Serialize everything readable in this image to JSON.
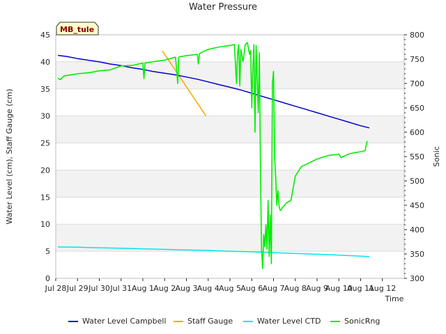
{
  "chart_data": {
    "type": "line",
    "title": "Water Pressure",
    "site_label": "MB_tule",
    "xlabel": "Time",
    "ylabel_left": "Water Level (cm), Staff Gauge (cm)",
    "ylabel_right": "Sonic",
    "xlim": [
      0,
      16
    ],
    "ylim_left": [
      0,
      45
    ],
    "ylim_right": [
      300,
      800
    ],
    "x_ticks": [
      {
        "pos": 0,
        "label": "Jul 28"
      },
      {
        "pos": 1,
        "label": "Jul 29"
      },
      {
        "pos": 2,
        "label": "Jul 30"
      },
      {
        "pos": 3,
        "label": "Jul 31"
      },
      {
        "pos": 4,
        "label": "Aug 1"
      },
      {
        "pos": 5,
        "label": "Aug 2"
      },
      {
        "pos": 6,
        "label": "Aug 3"
      },
      {
        "pos": 7,
        "label": "Aug 4"
      },
      {
        "pos": 8,
        "label": "Aug 5"
      },
      {
        "pos": 9,
        "label": "Aug 6"
      },
      {
        "pos": 10,
        "label": "Aug 7"
      },
      {
        "pos": 11,
        "label": "Aug 8"
      },
      {
        "pos": 12,
        "label": "Aug 9"
      },
      {
        "pos": 13,
        "label": "Aug 10"
      },
      {
        "pos": 14,
        "label": "Aug 11"
      },
      {
        "pos": 15,
        "label": "Aug 12"
      }
    ],
    "y_ticks_left": [
      0,
      5,
      10,
      15,
      20,
      25,
      30,
      35,
      40,
      45
    ],
    "y_ticks_right": [
      300,
      350,
      400,
      450,
      500,
      550,
      600,
      650,
      700,
      750,
      800
    ],
    "colors": {
      "campbell": "#0000cc",
      "staff": "#ffa500",
      "ctd": "#00e5ee",
      "sonic": "#00ee00",
      "band": "#f2f2f2",
      "grid": "#dcdcdc"
    },
    "series": [
      {
        "name": "Water Level Campbell",
        "key": "campbell",
        "axis": "left",
        "x": [
          0.1,
          0.5,
          1.0,
          1.5,
          2.0,
          2.5,
          3.0,
          3.5,
          4.0,
          4.5,
          5.0,
          5.5,
          6.0,
          6.5,
          7.0,
          7.5,
          8.0,
          8.5,
          9.0,
          9.5,
          10.0,
          10.5,
          11.0,
          11.5,
          12.0,
          12.5,
          13.0,
          13.5,
          14.0,
          14.4
        ],
        "y": [
          41.2,
          41.0,
          40.6,
          40.3,
          40.0,
          39.6,
          39.3,
          38.9,
          38.6,
          38.2,
          37.9,
          37.6,
          37.2,
          36.8,
          36.3,
          35.8,
          35.3,
          34.8,
          34.2,
          33.6,
          33.0,
          32.4,
          31.8,
          31.2,
          30.6,
          30.0,
          29.4,
          28.8,
          28.2,
          27.8
        ]
      },
      {
        "name": "Staff Gauge",
        "key": "staff",
        "axis": "left",
        "x": [
          4.9,
          6.9
        ],
        "y": [
          42.0,
          30.0
        ]
      },
      {
        "name": "Water Level CTD",
        "key": "ctd",
        "axis": "left",
        "x": [
          0.1,
          1.0,
          2.0,
          3.0,
          4.0,
          5.0,
          6.0,
          7.0,
          8.0,
          9.0,
          10.0,
          11.0,
          12.0,
          13.0,
          14.0,
          14.4
        ],
        "y": [
          5.8,
          5.75,
          5.65,
          5.55,
          5.45,
          5.35,
          5.25,
          5.15,
          5.0,
          4.9,
          4.75,
          4.6,
          4.45,
          4.3,
          4.1,
          4.0
        ]
      },
      {
        "name": "SonicRng",
        "key": "sonic",
        "axis": "right",
        "x": [
          0.1,
          0.2,
          0.4,
          0.6,
          1.0,
          1.5,
          2.0,
          2.5,
          3.0,
          3.5,
          4.0,
          4.05,
          4.1,
          4.5,
          5.0,
          5.5,
          5.6,
          5.65,
          5.7,
          6.0,
          6.5,
          6.55,
          6.6,
          6.7,
          7.0,
          7.5,
          8.0,
          8.2,
          8.3,
          8.35,
          8.4,
          8.45,
          8.5,
          8.6,
          8.7,
          8.8,
          8.9,
          8.95,
          9.0,
          9.05,
          9.1,
          9.15,
          9.2,
          9.3,
          9.35,
          9.4,
          9.45,
          9.5,
          9.55,
          9.6,
          9.65,
          9.7,
          9.75,
          9.8,
          9.85,
          9.9,
          9.95,
          10.0,
          10.05,
          10.1,
          10.15,
          10.2,
          10.25,
          10.3,
          10.35,
          10.4,
          10.5,
          10.6,
          10.8,
          11.0,
          11.2,
          11.3,
          11.5,
          12.0,
          12.5,
          13.0,
          13.1,
          13.5,
          14.0,
          14.2,
          14.3
        ],
        "y": [
          711,
          708,
          716,
          717,
          720,
          722,
          726,
          728,
          736,
          737,
          742,
          710,
          742,
          745,
          748,
          754,
          700,
          754,
          755,
          757,
          760,
          740,
          761,
          764,
          770,
          775,
          778,
          780,
          700,
          762,
          780,
          695,
          770,
          745,
          780,
          784,
          760,
          768,
          650,
          733,
          780,
          600,
          778,
          640,
          763,
          520,
          360,
          320,
          390,
          365,
          410,
          360,
          460,
          345,
          430,
          330,
          700,
          725,
          550,
          510,
          450,
          480,
          450,
          440,
          440,
          445,
          450,
          455,
          460,
          510,
          524,
          530,
          534,
          545,
          552,
          555,
          548,
          556,
          560,
          562,
          582
        ]
      }
    ]
  }
}
